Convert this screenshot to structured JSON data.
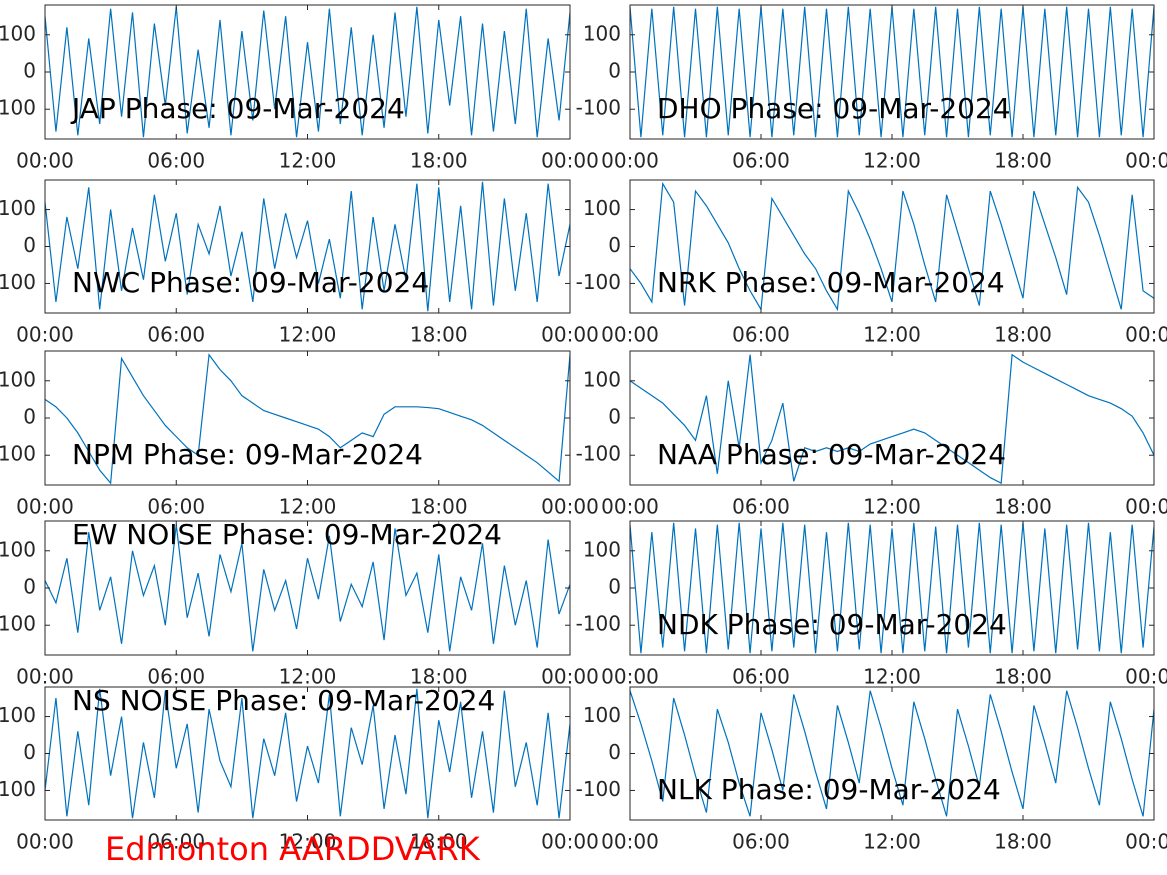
{
  "chart_data": [
    {
      "type": "line",
      "title": "JAP Phase: 09-Mar-2024",
      "color": "#0072bd",
      "x": [
        0,
        0.5,
        1,
        1.5,
        2,
        2.5,
        3,
        3.5,
        4,
        4.5,
        5,
        5.5,
        6,
        6.5,
        7,
        7.5,
        8,
        8.5,
        9,
        9.5,
        10,
        10.5,
        11,
        11.5,
        12,
        12.5,
        13,
        13.5,
        14,
        14.5,
        15,
        15.5,
        16,
        16.5,
        17,
        17.5,
        18,
        18.5,
        19,
        19.5,
        20,
        20.5,
        21,
        21.5,
        22,
        22.5,
        23,
        23.5,
        24
      ],
      "values": [
        150,
        -160,
        120,
        -170,
        90,
        -140,
        170,
        -120,
        160,
        -175,
        130,
        -90,
        175,
        -165,
        60,
        -150,
        140,
        -170,
        110,
        -130,
        165,
        -100,
        150,
        -175,
        80,
        -160,
        170,
        -140,
        120,
        -170,
        100,
        -150,
        160,
        -120,
        175,
        -165,
        140,
        -90,
        150,
        -170,
        130,
        -160,
        110,
        -140,
        170,
        -175,
        90,
        -130,
        160
      ],
      "xlim": [
        0,
        24
      ],
      "xticks": [
        {
          "value": 0,
          "label": "00:00"
        },
        {
          "value": 6,
          "label": "06:00"
        },
        {
          "value": 12,
          "label": "12:00"
        },
        {
          "value": 18,
          "label": "18:00"
        },
        {
          "value": 24,
          "label": "00:00"
        }
      ],
      "ylim": [
        -180,
        180
      ],
      "yticks": [
        -100,
        0,
        100
      ]
    },
    {
      "type": "line",
      "title": "DHO Phase: 09-Mar-2024",
      "color": "#0072bd",
      "x": [
        0,
        0.5,
        1,
        1.5,
        2,
        2.5,
        3,
        3.5,
        4,
        4.5,
        5,
        5.5,
        6,
        6.5,
        7,
        7.5,
        8,
        8.5,
        9,
        9.5,
        10,
        10.5,
        11,
        11.5,
        12,
        12.5,
        13,
        13.5,
        14,
        14.5,
        15,
        15.5,
        16,
        16.5,
        17,
        17.5,
        18,
        18.5,
        19,
        19.5,
        20,
        20.5,
        21,
        21.5,
        22,
        22.5,
        23,
        23.5,
        24
      ],
      "values": [
        175,
        -175,
        170,
        -170,
        175,
        -175,
        170,
        -175,
        175,
        -170,
        170,
        -175,
        175,
        -175,
        170,
        -170,
        175,
        -175,
        170,
        -175,
        175,
        -170,
        170,
        -175,
        175,
        -175,
        170,
        -170,
        175,
        -175,
        170,
        -175,
        175,
        -170,
        170,
        -175,
        175,
        -175,
        170,
        -170,
        175,
        -175,
        170,
        -175,
        175,
        -170,
        170,
        -175,
        175
      ],
      "xlim": [
        0,
        24
      ],
      "xticks": [
        {
          "value": 0,
          "label": "00:00"
        },
        {
          "value": 6,
          "label": "06:00"
        },
        {
          "value": 12,
          "label": "12:00"
        },
        {
          "value": 18,
          "label": "18:00"
        },
        {
          "value": 24,
          "label": "00:00"
        }
      ],
      "ylim": [
        -180,
        180
      ],
      "yticks": [
        -100,
        0,
        100
      ]
    },
    {
      "type": "line",
      "title": "NWC Phase: 09-Mar-2024",
      "color": "#0072bd",
      "x": [
        0,
        0.5,
        1,
        1.5,
        2,
        2.5,
        3,
        3.5,
        4,
        4.5,
        5,
        5.5,
        6,
        6.5,
        7,
        7.5,
        8,
        8.5,
        9,
        9.5,
        10,
        10.5,
        11,
        11.5,
        12,
        12.5,
        13,
        13.5,
        14,
        14.5,
        15,
        15.5,
        16,
        16.5,
        17,
        17.5,
        18,
        18.5,
        19,
        19.5,
        20,
        20.5,
        21,
        21.5,
        22,
        22.5,
        23,
        23.5,
        24
      ],
      "values": [
        120,
        -150,
        80,
        -60,
        160,
        -170,
        100,
        -120,
        50,
        -90,
        140,
        -40,
        90,
        -130,
        60,
        -20,
        110,
        -80,
        40,
        -150,
        130,
        -60,
        90,
        -30,
        70,
        -100,
        20,
        -140,
        150,
        -170,
        80,
        -120,
        60,
        -90,
        170,
        -175,
        160,
        -150,
        110,
        -170,
        175,
        -160,
        130,
        -120,
        90,
        -150,
        170,
        -80,
        60
      ],
      "xlim": [
        0,
        24
      ],
      "xticks": [
        {
          "value": 0,
          "label": "00:00"
        },
        {
          "value": 6,
          "label": "06:00"
        },
        {
          "value": 12,
          "label": "12:00"
        },
        {
          "value": 18,
          "label": "18:00"
        },
        {
          "value": 24,
          "label": "00:00"
        }
      ],
      "ylim": [
        -180,
        180
      ],
      "yticks": [
        -100,
        0,
        100
      ]
    },
    {
      "type": "line",
      "title": "NRK Phase: 09-Mar-2024",
      "color": "#0072bd",
      "x": [
        0,
        0.5,
        1,
        1.5,
        2,
        2.5,
        3,
        3.5,
        4,
        4.5,
        5,
        5.5,
        6,
        6.5,
        7,
        7.5,
        8,
        8.5,
        9,
        9.5,
        10,
        10.5,
        11,
        11.5,
        12,
        12.5,
        13,
        13.5,
        14,
        14.5,
        15,
        15.5,
        16,
        16.5,
        17,
        17.5,
        18,
        18.5,
        19,
        19.5,
        20,
        20.5,
        21,
        21.5,
        22,
        22.5,
        23,
        23.5,
        24
      ],
      "values": [
        -60,
        -100,
        -150,
        170,
        120,
        -160,
        150,
        110,
        60,
        10,
        -60,
        -120,
        -170,
        130,
        80,
        30,
        -20,
        -60,
        -120,
        -170,
        150,
        90,
        20,
        -60,
        -150,
        150,
        60,
        -50,
        -150,
        140,
        40,
        -60,
        -160,
        150,
        60,
        -40,
        -140,
        150,
        60,
        -30,
        -130,
        160,
        120,
        30,
        -70,
        -170,
        140,
        -120,
        -140
      ],
      "xlim": [
        0,
        24
      ],
      "xticks": [
        {
          "value": 0,
          "label": "00:00"
        },
        {
          "value": 6,
          "label": "06:00"
        },
        {
          "value": 12,
          "label": "12:00"
        },
        {
          "value": 18,
          "label": "18:00"
        },
        {
          "value": 24,
          "label": "00:00"
        }
      ],
      "ylim": [
        -180,
        180
      ],
      "yticks": [
        -100,
        0,
        100
      ]
    },
    {
      "type": "line",
      "title": "NPM Phase: 09-Mar-2024",
      "color": "#0072bd",
      "x": [
        0,
        0.5,
        1,
        1.5,
        2,
        2.5,
        3,
        3.5,
        4,
        4.5,
        5,
        5.5,
        6,
        6.5,
        7,
        7.5,
        8,
        8.5,
        9,
        9.5,
        10,
        10.5,
        11,
        11.5,
        12,
        12.5,
        13,
        13.5,
        14,
        14.5,
        15,
        15.5,
        16,
        16.5,
        17,
        17.5,
        18,
        18.5,
        19,
        19.5,
        20,
        20.5,
        21,
        21.5,
        22,
        22.5,
        23,
        23.5,
        24
      ],
      "values": [
        50,
        30,
        0,
        -40,
        -90,
        -140,
        -175,
        160,
        110,
        60,
        20,
        -20,
        -50,
        -80,
        -100,
        170,
        130,
        100,
        60,
        40,
        20,
        10,
        0,
        -10,
        -20,
        -30,
        -50,
        -80,
        -60,
        -40,
        -50,
        10,
        30,
        30,
        30,
        28,
        25,
        15,
        5,
        -5,
        -20,
        -40,
        -60,
        -80,
        -100,
        -120,
        -145,
        -170,
        170
      ],
      "xlim": [
        0,
        24
      ],
      "xticks": [
        {
          "value": 0,
          "label": "00:00"
        },
        {
          "value": 6,
          "label": "06:00"
        },
        {
          "value": 12,
          "label": "12:00"
        },
        {
          "value": 18,
          "label": "18:00"
        },
        {
          "value": 24,
          "label": "00:00"
        }
      ],
      "ylim": [
        -180,
        180
      ],
      "yticks": [
        -100,
        0,
        100
      ]
    },
    {
      "type": "line",
      "title": "NAA Phase: 09-Mar-2024",
      "color": "#0072bd",
      "x": [
        0,
        0.5,
        1,
        1.5,
        2,
        2.5,
        3,
        3.5,
        4,
        4.5,
        5,
        5.5,
        6,
        6.5,
        7,
        7.5,
        8,
        8.5,
        9,
        9.5,
        10,
        10.5,
        11,
        11.5,
        12,
        12.5,
        13,
        13.5,
        14,
        14.5,
        15,
        15.5,
        16,
        16.5,
        17,
        17.5,
        18,
        18.5,
        19,
        19.5,
        20,
        20.5,
        21,
        21.5,
        22,
        22.5,
        23,
        23.5,
        24
      ],
      "values": [
        100,
        80,
        60,
        40,
        10,
        -20,
        -60,
        60,
        -150,
        100,
        -80,
        170,
        -120,
        -60,
        40,
        -170,
        -80,
        -90,
        -80,
        -90,
        -80,
        -90,
        -70,
        -60,
        -50,
        -40,
        -30,
        -40,
        -60,
        -80,
        -100,
        -120,
        -140,
        -160,
        -175,
        170,
        150,
        135,
        120,
        105,
        90,
        75,
        60,
        50,
        40,
        25,
        5,
        -40,
        -100
      ],
      "xlim": [
        0,
        24
      ],
      "xticks": [
        {
          "value": 0,
          "label": "00:00"
        },
        {
          "value": 6,
          "label": "06:00"
        },
        {
          "value": 12,
          "label": "12:00"
        },
        {
          "value": 18,
          "label": "18:00"
        },
        {
          "value": 24,
          "label": "00:00"
        }
      ],
      "ylim": [
        -180,
        180
      ],
      "yticks": [
        -100,
        0,
        100
      ]
    },
    {
      "type": "line",
      "title": "EW NOISE Phase: 09-Mar-2024",
      "color": "#0072bd",
      "x": [
        0,
        0.5,
        1,
        1.5,
        2,
        2.5,
        3,
        3.5,
        4,
        4.5,
        5,
        5.5,
        6,
        6.5,
        7,
        7.5,
        8,
        8.5,
        9,
        9.5,
        10,
        10.5,
        11,
        11.5,
        12,
        12.5,
        13,
        13.5,
        14,
        14.5,
        15,
        15.5,
        16,
        16.5,
        17,
        17.5,
        18,
        18.5,
        19,
        19.5,
        20,
        20.5,
        21,
        21.5,
        22,
        22.5,
        23,
        23.5,
        24
      ],
      "values": [
        20,
        -40,
        80,
        -120,
        150,
        -60,
        30,
        -150,
        100,
        -20,
        60,
        -100,
        170,
        -80,
        40,
        -130,
        90,
        -10,
        120,
        -170,
        50,
        -60,
        20,
        -110,
        80,
        -30,
        140,
        -90,
        10,
        -50,
        70,
        -140,
        160,
        -20,
        40,
        -120,
        90,
        -170,
        30,
        -60,
        120,
        -150,
        60,
        -100,
        20,
        -160,
        130,
        -70,
        10
      ],
      "xlim": [
        0,
        24
      ],
      "xticks": [
        {
          "value": 0,
          "label": "00:00"
        },
        {
          "value": 6,
          "label": "06:00"
        },
        {
          "value": 12,
          "label": "12:00"
        },
        {
          "value": 18,
          "label": "18:00"
        },
        {
          "value": 24,
          "label": "00:00"
        }
      ],
      "ylim": [
        -180,
        180
      ],
      "yticks": [
        -100,
        0,
        100
      ]
    },
    {
      "type": "line",
      "title": "NDK Phase: 09-Mar-2024",
      "color": "#0072bd",
      "x": [
        0,
        0.5,
        1,
        1.5,
        2,
        2.5,
        3,
        3.5,
        4,
        4.5,
        5,
        5.5,
        6,
        6.5,
        7,
        7.5,
        8,
        8.5,
        9,
        9.5,
        10,
        10.5,
        11,
        11.5,
        12,
        12.5,
        13,
        13.5,
        14,
        14.5,
        15,
        15.5,
        16,
        16.5,
        17,
        17.5,
        18,
        18.5,
        19,
        19.5,
        20,
        20.5,
        21,
        21.5,
        22,
        22.5,
        23,
        23.5,
        24
      ],
      "values": [
        170,
        -175,
        150,
        -160,
        175,
        -170,
        160,
        -175,
        170,
        -165,
        175,
        -175,
        160,
        -170,
        175,
        -160,
        170,
        -175,
        150,
        -170,
        175,
        -165,
        170,
        -175,
        160,
        -175,
        175,
        -170,
        165,
        -175,
        170,
        -160,
        175,
        -175,
        170,
        -175,
        175,
        -170,
        160,
        -175,
        170,
        -165,
        175,
        -170,
        150,
        -175,
        170,
        -160,
        165
      ],
      "xlim": [
        0,
        24
      ],
      "xticks": [
        {
          "value": 0,
          "label": "00:00"
        },
        {
          "value": 6,
          "label": "06:00"
        },
        {
          "value": 12,
          "label": "12:00"
        },
        {
          "value": 18,
          "label": "18:00"
        },
        {
          "value": 24,
          "label": "00:00"
        }
      ],
      "ylim": [
        -180,
        180
      ],
      "yticks": [
        -100,
        0,
        100
      ]
    },
    {
      "type": "line",
      "title": "NS NOISE Phase: 09-Mar-2024",
      "color": "#0072bd",
      "x": [
        0,
        0.5,
        1,
        1.5,
        2,
        2.5,
        3,
        3.5,
        4,
        4.5,
        5,
        5.5,
        6,
        6.5,
        7,
        7.5,
        8,
        8.5,
        9,
        9.5,
        10,
        10.5,
        11,
        11.5,
        12,
        12.5,
        13,
        13.5,
        14,
        14.5,
        15,
        15.5,
        16,
        16.5,
        17,
        17.5,
        18,
        18.5,
        19,
        19.5,
        20,
        20.5,
        21,
        21.5,
        22,
        22.5,
        23,
        23.5,
        24
      ],
      "values": [
        -100,
        150,
        -170,
        60,
        -140,
        175,
        -60,
        100,
        -175,
        30,
        -120,
        170,
        -40,
        80,
        -160,
        120,
        -20,
        -90,
        150,
        -175,
        40,
        -60,
        110,
        -130,
        20,
        -80,
        160,
        -170,
        70,
        -30,
        130,
        -150,
        50,
        -110,
        175,
        -175,
        90,
        -50,
        140,
        -120,
        60,
        -160,
        170,
        -90,
        30,
        -140,
        110,
        -175,
        80
      ],
      "xlim": [
        0,
        24
      ],
      "xticks": [
        {
          "value": 0,
          "label": "00:00"
        },
        {
          "value": 6,
          "label": "06:00"
        },
        {
          "value": 12,
          "label": "12:00"
        },
        {
          "value": 18,
          "label": "18:00"
        },
        {
          "value": 24,
          "label": "00:00"
        }
      ],
      "ylim": [
        -180,
        180
      ],
      "yticks": [
        -100,
        0,
        100
      ]
    },
    {
      "type": "line",
      "title": "NLK Phase: 09-Mar-2024",
      "color": "#0072bd",
      "x": [
        0,
        0.5,
        1,
        1.5,
        2,
        2.5,
        3,
        3.5,
        4,
        4.5,
        5,
        5.5,
        6,
        6.5,
        7,
        7.5,
        8,
        8.5,
        9,
        9.5,
        10,
        10.5,
        11,
        11.5,
        12,
        12.5,
        13,
        13.5,
        14,
        14.5,
        15,
        15.5,
        16,
        16.5,
        17,
        17.5,
        18,
        18.5,
        19,
        19.5,
        20,
        20.5,
        21,
        21.5,
        22,
        22.5,
        23,
        23.5,
        24
      ],
      "values": [
        170,
        80,
        -20,
        -130,
        150,
        50,
        -60,
        -160,
        120,
        30,
        -80,
        -170,
        110,
        10,
        -100,
        160,
        60,
        -50,
        -150,
        130,
        30,
        -80,
        170,
        70,
        -40,
        -140,
        140,
        40,
        -70,
        -170,
        120,
        20,
        -90,
        160,
        60,
        -50,
        -150,
        130,
        30,
        -80,
        170,
        70,
        -40,
        -140,
        140,
        40,
        -70,
        -170,
        120
      ],
      "xlim": [
        0,
        24
      ],
      "xticks": [
        {
          "value": 0,
          "label": "00:00"
        },
        {
          "value": 6,
          "label": "06:00"
        },
        {
          "value": 12,
          "label": "12:00"
        },
        {
          "value": 18,
          "label": "18:00"
        },
        {
          "value": 24,
          "label": "00:00"
        }
      ],
      "ylim": [
        -180,
        180
      ],
      "yticks": [
        -100,
        0,
        100
      ]
    }
  ],
  "caption": "Edmonton AARDDVARK"
}
